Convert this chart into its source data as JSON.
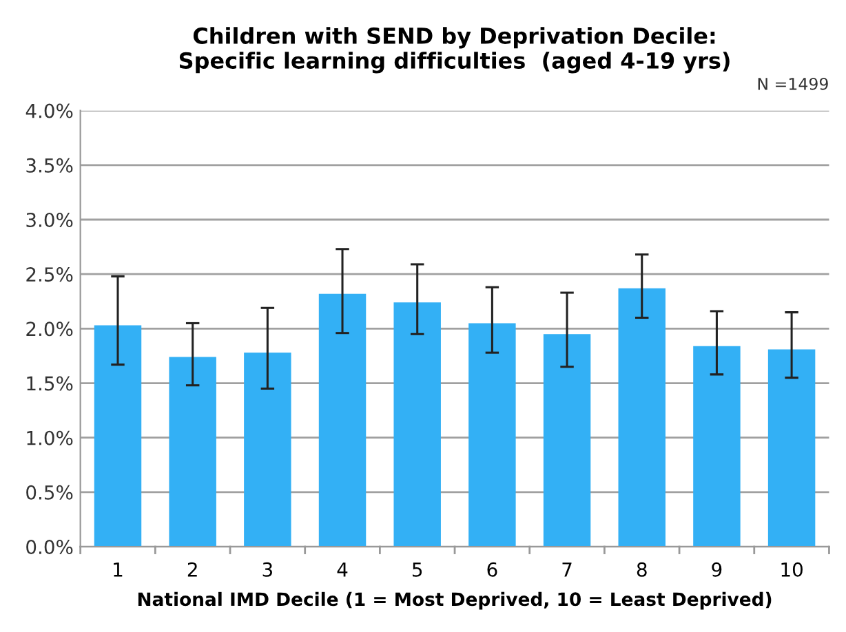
{
  "chart_data": {
    "type": "bar",
    "title": "Children with SEND by Deprivation Decile:\nSpecific learning difficulties  (aged 4-19 yrs)",
    "xlabel": "National IMD Decile (1 = Most Deprived, 10 = Least Deprived)",
    "annotations": [
      "N =1499"
    ],
    "categories": [
      "1",
      "2",
      "3",
      "4",
      "5",
      "6",
      "7",
      "8",
      "9",
      "10"
    ],
    "values": [
      2.03,
      1.74,
      1.78,
      2.32,
      2.24,
      2.05,
      1.95,
      2.37,
      1.84,
      1.81
    ],
    "errors": [
      [
        1.67,
        2.48
      ],
      [
        1.48,
        2.05
      ],
      [
        1.45,
        2.19
      ],
      [
        1.96,
        2.73
      ],
      [
        1.95,
        2.59
      ],
      [
        1.78,
        2.38
      ],
      [
        1.65,
        2.33
      ],
      [
        2.1,
        2.68
      ],
      [
        1.58,
        2.16
      ],
      [
        1.55,
        2.15
      ]
    ],
    "color": "#33b0f5",
    "ylim": [
      0,
      4
    ],
    "yticks": [
      {
        "value": 0,
        "label": "0.0%"
      },
      {
        "value": 0.5,
        "label": "0.5%"
      },
      {
        "value": 1,
        "label": "1.0%"
      },
      {
        "value": 1.5,
        "label": "1.5%"
      },
      {
        "value": 2,
        "label": "2.0%"
      },
      {
        "value": 2.5,
        "label": "2.5%"
      },
      {
        "value": 3,
        "label": "3.0%"
      },
      {
        "value": 3.5,
        "label": "3.5%"
      },
      {
        "value": 4,
        "label": "4.0%"
      }
    ],
    "grid": "y",
    "legend": false
  }
}
